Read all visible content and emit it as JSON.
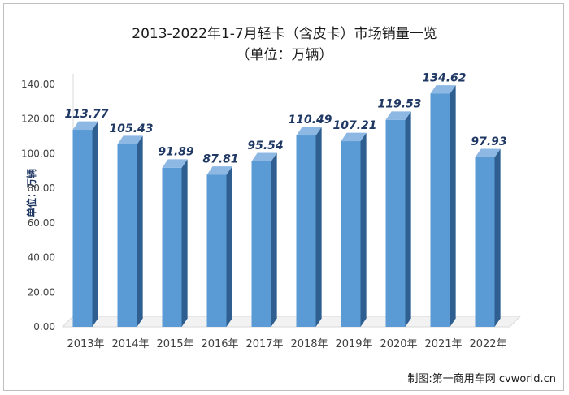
{
  "chart_data": {
    "type": "bar",
    "title": "2013-2022年1-7月轻卡（含皮卡）市场销量一览",
    "subtitle": "（单位：万辆）",
    "ylabel": "单位：万辆",
    "categories": [
      "2013年",
      "2014年",
      "2015年",
      "2016年",
      "2017年",
      "2018年",
      "2019年",
      "2020年",
      "2021年",
      "2022年"
    ],
    "values": [
      113.77,
      105.43,
      91.89,
      87.81,
      95.54,
      110.49,
      107.21,
      119.53,
      134.62,
      97.93
    ],
    "value_labels": [
      "113.77",
      "105.43",
      "91.89",
      "87.81",
      "95.54",
      "110.49",
      "107.21",
      "119.53",
      "134.62",
      "97.93"
    ],
    "yticks": [
      "0.00",
      "20.00",
      "40.00",
      "60.00",
      "80.00",
      "100.00",
      "120.00",
      "140.00"
    ],
    "ylim": [
      0,
      140
    ],
    "style": "3d",
    "grid": false,
    "colors": {
      "bar_front": "#5b9bd5",
      "bar_side": "#2e5f90",
      "bar_top": "#8db8e4",
      "label": "#1f3864"
    }
  },
  "source": "制图:第一商用车网 cvworld.cn"
}
